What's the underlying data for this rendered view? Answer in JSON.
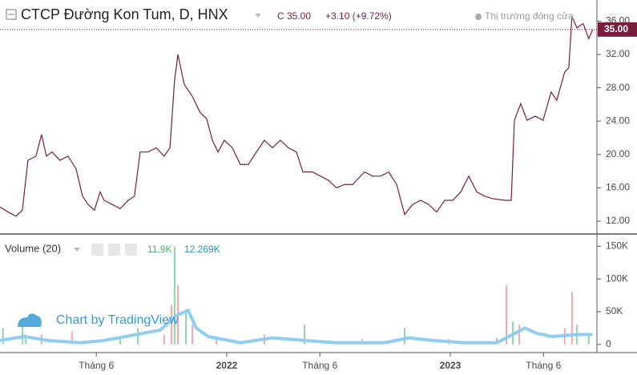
{
  "chart_data": {
    "type": "line",
    "title": "CTCP Đường Kon Tum, D, HNX",
    "close_prefix": "C",
    "last_price": {
      "value": 35,
      "label": "35.00"
    },
    "change": "+3.10 (+9.72%)",
    "market_status": "Thị trường đóng cửa",
    "watermark": "Chart by TradingView",
    "color": "#7a1c3e",
    "xlim": [
      -0.17,
      31.87
    ],
    "xticks": [
      {
        "value": 5,
        "label": "Tháng 6"
      },
      {
        "value": 12,
        "label": "2022"
      },
      {
        "value": 17,
        "label": "Tháng 6"
      },
      {
        "value": 24,
        "label": "2023"
      },
      {
        "value": 29,
        "label": "Tháng 6"
      }
    ],
    "ylim": [
      10.46,
      38.54
    ],
    "yticks": [
      {
        "value": 12,
        "label": "12.00"
      },
      {
        "value": 16,
        "label": "16.00"
      },
      {
        "value": 20,
        "label": "20.00"
      },
      {
        "value": 24,
        "label": "24.00"
      },
      {
        "value": 28,
        "label": "28.00"
      },
      {
        "value": 32,
        "label": "32.00"
      },
      {
        "value": 36,
        "label": "36.00"
      }
    ],
    "x": [
      -0.17,
      0.26,
      0.69,
      1.03,
      1.33,
      1.76,
      2.06,
      2.32,
      2.62,
      3.05,
      3.48,
      3.91,
      4.26,
      4.56,
      4.9,
      5.2,
      5.42,
      5.85,
      6.28,
      6.71,
      7.05,
      7.35,
      7.78,
      8.21,
      8.64,
      8.95,
      9.2,
      9.38,
      9.72,
      10.15,
      10.58,
      10.92,
      11.23,
      11.53,
      11.87,
      12.3,
      12.73,
      13.16,
      13.59,
      14.02,
      14.45,
      14.88,
      15.31,
      15.74,
      16.09,
      16.6,
      17.03,
      17.46,
      17.89,
      18.32,
      18.75,
      19.4,
      19.83,
      20.26,
      20.69,
      21.12,
      21.55,
      21.98,
      22.41,
      22.84,
      23.27,
      23.7,
      24.13,
      24.56,
      24.99,
      25.42,
      25.85,
      26.28,
      26.92,
      27.27,
      27.44,
      27.78,
      28.12,
      28.55,
      28.98,
      29.41,
      29.71,
      30.14,
      30.36,
      30.53,
      30.79,
      31.13,
      31.43,
      31.64
    ],
    "values": [
      13.7,
      13.1,
      12.6,
      13.3,
      19.3,
      19.8,
      22.4,
      19.8,
      20.3,
      19.3,
      19.8,
      18.3,
      15.0,
      14.0,
      13.3,
      15.5,
      14.5,
      14.0,
      13.5,
      14.5,
      15.0,
      20.3,
      20.3,
      20.8,
      19.8,
      20.8,
      28.9,
      32.0,
      28.4,
      27.0,
      25.0,
      24.3,
      21.7,
      20.3,
      21.7,
      20.8,
      18.8,
      18.8,
      20.3,
      21.7,
      20.8,
      21.7,
      20.8,
      20.3,
      17.9,
      17.9,
      17.4,
      16.9,
      16.0,
      16.4,
      16.4,
      17.9,
      17.4,
      17.4,
      17.9,
      16.4,
      12.8,
      14.0,
      14.5,
      14.0,
      13.1,
      14.5,
      14.5,
      15.5,
      17.4,
      15.5,
      15.0,
      14.7,
      14.5,
      14.5,
      24.1,
      26.1,
      24.1,
      24.6,
      24.1,
      27.5,
      26.5,
      29.9,
      30.4,
      36.6,
      35.2,
      35.7,
      33.9,
      35.0
    ],
    "volume": {
      "label": "Volume (20)",
      "last_volume": "11.9K",
      "last_ma": "12.269K",
      "ylim": [
        -12500,
        168750
      ],
      "yticks": [
        0,
        {
          "value": 50000,
          "label": "50K"
        },
        {
          "value": 100000,
          "label": "100K"
        },
        {
          "value": 150000,
          "label": "150K"
        }
      ],
      "up": {
        "color": "#8fd4a8",
        "x": [
          -0.01,
          1.04,
          1.21,
          7.23,
          9.2,
          9.81,
          16.17,
          21.55,
          26.49,
          27.35,
          30.79,
          31.43,
          6.28,
          19.27
        ],
        "values": [
          25000,
          40000,
          15000,
          25000,
          150000,
          50000,
          30000,
          25000,
          10000,
          35000,
          30000,
          15000,
          8000,
          8000
        ]
      },
      "down": {
        "color": "#f2a9a9",
        "x": [
          2.06,
          3.69,
          8.64,
          9.03,
          9.38,
          10.15,
          11.44,
          14.02,
          23.91,
          27.01,
          27.7,
          30.14,
          30.53
        ],
        "values": [
          15000,
          20000,
          15000,
          60000,
          90000,
          30000,
          10000,
          15000,
          8000,
          90000,
          30000,
          25000,
          80000
        ]
      },
      "ma": {
        "color": "#8fcdf2",
        "x": [
          -0.17,
          1.12,
          2.41,
          4.13,
          5.42,
          7.14,
          8.43,
          9.29,
          9.93,
          10.36,
          11.01,
          12.73,
          14.45,
          16.17,
          17.89,
          20.47,
          21.76,
          23.05,
          24.77,
          26.49,
          27.35,
          28.0,
          28.64,
          29.5,
          30.79,
          31.64
        ],
        "values": [
          6000,
          12000,
          6000,
          2500,
          6000,
          15000,
          22000,
          44000,
          52000,
          25000,
          12000,
          2500,
          10000,
          6000,
          2500,
          2500,
          10000,
          6000,
          2500,
          2500,
          15000,
          25000,
          17000,
          12000,
          15000,
          15000
        ]
      }
    }
  }
}
